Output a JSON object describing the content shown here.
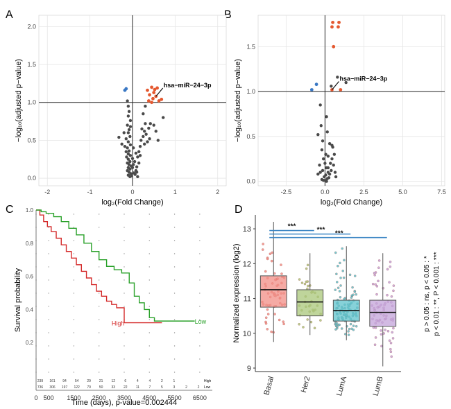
{
  "colors": {
    "up": "#e4582f",
    "down": "#3a78c4",
    "ns": "#4a4a4a",
    "high": "#d42a2a",
    "low": "#2aa12a",
    "basal": "#f28e86",
    "her2": "#a9c77a",
    "luma": "#5ec3cc",
    "lumb": "#c3a3da",
    "bracket": "#3c86c4"
  },
  "chart_data": [
    {
      "panel": "A",
      "type": "scatter",
      "xlabel": "log₂(Fold Change)",
      "ylabel": "−log₁₀(adjusted p−value)",
      "xlim": [
        -2.2,
        2.2
      ],
      "ylim": [
        -0.1,
        2.15
      ],
      "xticks": [
        -2,
        -1,
        0,
        1,
        2
      ],
      "yticks": [
        0.0,
        0.5,
        1.0,
        1.5,
        2.0
      ],
      "ytick_labels": [
        "0.0",
        "0.5",
        "1.0",
        "1.5",
        "2.0"
      ],
      "hline": 1.0,
      "vline": 0,
      "annotation": "hsa−miR−24−3p",
      "annotation_point": [
        0.55,
        1.08
      ],
      "points_up": [
        [
          0.35,
          1.16
        ],
        [
          0.45,
          1.2
        ],
        [
          0.52,
          1.17
        ],
        [
          0.58,
          1.19
        ],
        [
          0.4,
          1.1
        ],
        [
          0.48,
          1.05
        ],
        [
          0.55,
          1.08
        ],
        [
          0.62,
          1.02
        ],
        [
          0.45,
          1.0
        ],
        [
          0.38,
          1.02
        ],
        [
          0.68,
          1.04
        ],
        [
          0.5,
          1.13
        ]
      ],
      "points_down": [
        [
          -0.15,
          1.18
        ],
        [
          -0.18,
          1.16
        ]
      ],
      "points_ns": [
        [
          -0.12,
          1.02
        ],
        [
          -0.1,
          0.95
        ],
        [
          -0.08,
          0.88
        ],
        [
          -0.1,
          0.82
        ],
        [
          -0.05,
          0.76
        ],
        [
          -0.12,
          0.7
        ],
        [
          -0.08,
          0.64
        ],
        [
          -0.1,
          0.6
        ],
        [
          -0.06,
          0.55
        ],
        [
          -0.15,
          0.52
        ],
        [
          -0.1,
          0.48
        ],
        [
          -0.05,
          0.44
        ],
        [
          -0.12,
          0.4
        ],
        [
          -0.08,
          0.36
        ],
        [
          -0.1,
          0.32
        ],
        [
          -0.05,
          0.3
        ],
        [
          -0.14,
          0.28
        ],
        [
          -0.1,
          0.25
        ],
        [
          -0.06,
          0.22
        ],
        [
          -0.12,
          0.2
        ],
        [
          -0.08,
          0.18
        ],
        [
          -0.03,
          0.16
        ],
        [
          -0.1,
          0.14
        ],
        [
          -0.06,
          0.12
        ],
        [
          -0.12,
          0.1
        ],
        [
          -0.08,
          0.08
        ],
        [
          -0.04,
          0.06
        ],
        [
          -0.1,
          0.04
        ],
        [
          -0.06,
          0.02
        ],
        [
          0.02,
          0.18
        ],
        [
          0.05,
          0.22
        ],
        [
          0.0,
          0.14
        ],
        [
          0.08,
          0.1
        ],
        [
          0.03,
          0.07
        ],
        [
          -0.02,
          0.03
        ],
        [
          0.06,
          0.05
        ],
        [
          0.1,
          0.15
        ],
        [
          0.12,
          0.28
        ],
        [
          0.15,
          0.35
        ],
        [
          0.18,
          0.42
        ],
        [
          0.2,
          0.5
        ],
        [
          0.25,
          0.55
        ],
        [
          0.28,
          0.62
        ],
        [
          0.3,
          0.72
        ],
        [
          0.22,
          0.65
        ],
        [
          0.32,
          0.58
        ],
        [
          0.35,
          0.48
        ],
        [
          0.4,
          0.52
        ],
        [
          0.38,
          0.66
        ],
        [
          0.42,
          0.72
        ],
        [
          0.28,
          0.45
        ],
        [
          0.18,
          0.3
        ],
        [
          0.15,
          0.2
        ],
        [
          0.1,
          0.08
        ],
        [
          -0.2,
          0.6
        ],
        [
          -0.32,
          0.54
        ],
        [
          -0.25,
          0.45
        ],
        [
          0.5,
          0.7
        ],
        [
          0.55,
          0.62
        ],
        [
          0.6,
          0.5
        ],
        [
          0.72,
          0.8
        ],
        [
          0.3,
          0.95
        ],
        [
          0.25,
          0.85
        ],
        [
          -0.05,
          0.68
        ],
        [
          0.02,
          0.4
        ],
        [
          0.08,
          0.33
        ],
        [
          0.0,
          0.26
        ],
        [
          -0.15,
          0.35
        ],
        [
          -0.18,
          0.42
        ],
        [
          0.12,
          0.02
        ]
      ]
    },
    {
      "panel": "B",
      "type": "scatter",
      "xlabel": "log₂(Fold Change)",
      "ylabel": "−log₁₀(adjusted p−value)",
      "xlim": [
        -4.3,
        7.7
      ],
      "ylim": [
        -0.05,
        1.85
      ],
      "xticks": [
        -2.5,
        0.0,
        2.5,
        5.0,
        7.5
      ],
      "xtick_labels": [
        "-2.5",
        "0.0",
        "2.5",
        "5.0",
        "7.5"
      ],
      "yticks": [
        0.0,
        0.5,
        1.0,
        1.5
      ],
      "ytick_labels": [
        "0.0",
        "0.5",
        "1.0",
        "1.5"
      ],
      "hline": 1.0,
      "vline": 0,
      "annotation": "hsa−miR−24−3p",
      "annotation_point": [
        0.45,
        1.02
      ],
      "points_up": [
        [
          0.9,
          1.77
        ],
        [
          0.45,
          1.72
        ],
        [
          0.5,
          1.77
        ],
        [
          0.85,
          1.72
        ],
        [
          0.55,
          1.5
        ],
        [
          1.0,
          1.02
        ],
        [
          0.45,
          1.02
        ]
      ],
      "points_down": [
        [
          -0.85,
          1.02
        ],
        [
          -0.55,
          1.08
        ]
      ],
      "points_ns": [
        [
          1.35,
          1.1
        ],
        [
          0.8,
          1.16
        ],
        [
          0.4,
          1.06
        ],
        [
          -0.3,
          0.85
        ],
        [
          -0.25,
          0.62
        ],
        [
          -0.45,
          0.52
        ],
        [
          0.1,
          0.72
        ],
        [
          0.15,
          0.55
        ],
        [
          -0.15,
          0.45
        ],
        [
          -0.2,
          0.35
        ],
        [
          0.05,
          0.3
        ],
        [
          0.2,
          0.28
        ],
        [
          0.3,
          0.42
        ],
        [
          -0.1,
          0.25
        ],
        [
          0.0,
          0.2
        ],
        [
          0.1,
          0.15
        ],
        [
          -0.15,
          0.12
        ],
        [
          0.2,
          0.1
        ],
        [
          0.05,
          0.07
        ],
        [
          -0.05,
          0.05
        ],
        [
          0.15,
          0.03
        ],
        [
          -0.2,
          0.02
        ],
        [
          0.25,
          0.04
        ],
        [
          0.3,
          0.08
        ],
        [
          -0.3,
          0.1
        ],
        [
          0.4,
          0.12
        ],
        [
          0.35,
          0.2
        ],
        [
          -0.35,
          0.18
        ],
        [
          0.45,
          0.25
        ],
        [
          0.55,
          0.18
        ],
        [
          0.6,
          0.3
        ],
        [
          0.5,
          0.38
        ],
        [
          0.65,
          0.1
        ],
        [
          -0.45,
          0.08
        ],
        [
          0.7,
          0.05
        ],
        [
          0.0,
          0.01
        ],
        [
          0.1,
          0.0
        ],
        [
          -0.1,
          0.01
        ],
        [
          0.2,
          0.15
        ],
        [
          0.45,
          0.4
        ]
      ]
    },
    {
      "panel": "C",
      "type": "line",
      "xlabel": "Time (days), p-value=0.002444",
      "ylabel": "Survival probability",
      "xlim": [
        0,
        7000
      ],
      "ylim": [
        0,
        1.0
      ],
      "xticks": [
        0,
        500,
        1500,
        2500,
        3500,
        4500,
        5500,
        6500
      ],
      "xtick_labels": [
        "0",
        "500",
        "1500",
        "2500",
        "3500",
        "4500",
        "5500",
        "6500"
      ],
      "yticks": [
        0.2,
        0.4,
        0.6,
        0.8,
        1.0
      ],
      "ytick_labels": [
        "0.2",
        "0.4",
        "0.6",
        "0.8",
        "1.0"
      ],
      "series": [
        {
          "name": "High",
          "x": [
            0,
            150,
            300,
            450,
            600,
            800,
            1000,
            1200,
            1400,
            1600,
            1800,
            2000,
            2200,
            2400,
            2600,
            2800,
            3000,
            3200,
            3400,
            3500,
            3500,
            5000
          ],
          "y": [
            1.0,
            0.97,
            0.93,
            0.9,
            0.87,
            0.83,
            0.79,
            0.75,
            0.71,
            0.67,
            0.63,
            0.59,
            0.55,
            0.51,
            0.48,
            0.45,
            0.43,
            0.41,
            0.41,
            0.41,
            0.32,
            0.32
          ]
        },
        {
          "name": "Low",
          "x": [
            0,
            200,
            400,
            700,
            1000,
            1300,
            1600,
            1900,
            2200,
            2500,
            2800,
            3100,
            3400,
            3700,
            3900,
            4100,
            4300,
            4500,
            4700,
            6300
          ],
          "y": [
            1.0,
            0.99,
            0.98,
            0.96,
            0.93,
            0.89,
            0.85,
            0.8,
            0.75,
            0.7,
            0.66,
            0.64,
            0.62,
            0.56,
            0.48,
            0.44,
            0.4,
            0.35,
            0.33,
            0.33
          ]
        }
      ],
      "risk_high": [
        "239",
        "161",
        "94",
        "54",
        "29",
        "21",
        "12",
        "6",
        "4",
        "4",
        "2",
        "1"
      ],
      "risk_low": [
        "736",
        "306",
        "197",
        "122",
        "70",
        "50",
        "33",
        "22",
        "11",
        "7",
        "5",
        "3",
        "2",
        "2"
      ],
      "risk_high_label": "High",
      "risk_low_label": "Low"
    },
    {
      "panel": "D",
      "type": "box",
      "categories": [
        "Basal",
        "Her2",
        "LumA",
        "LumB"
      ],
      "ylabel": "Normalized expression (log2)",
      "ylim": [
        8.9,
        13.4
      ],
      "yticks": [
        9,
        10,
        11,
        12,
        13
      ],
      "boxes": [
        {
          "name": "Basal",
          "q1": 10.75,
          "median": 11.25,
          "q3": 11.65,
          "min": 9.75,
          "max": 13.2
        },
        {
          "name": "Her2",
          "q1": 10.5,
          "median": 10.9,
          "q3": 11.25,
          "min": 9.95,
          "max": 12.3
        },
        {
          "name": "LumA",
          "q1": 10.35,
          "median": 10.65,
          "q3": 10.95,
          "min": 9.8,
          "max": 12.5
        },
        {
          "name": "LumB",
          "q1": 10.2,
          "median": 10.6,
          "q3": 10.95,
          "min": 9.05,
          "max": 12.3
        }
      ],
      "brackets": [
        {
          "from": "Basal",
          "to": "Her2",
          "y": 12.95,
          "label": "***"
        },
        {
          "from": "Basal",
          "to": "LumA",
          "y": 12.85,
          "label": "***"
        },
        {
          "from": "Basal",
          "to": "LumB",
          "y": 12.75,
          "label": "***"
        }
      ],
      "significance_note": [
        "p > 0.05 : ns, p < 0.05 : *",
        "p < 0.01 : **, P < 0.001 : ***"
      ]
    }
  ],
  "panel_labels": [
    "A",
    "B",
    "C",
    "D"
  ]
}
